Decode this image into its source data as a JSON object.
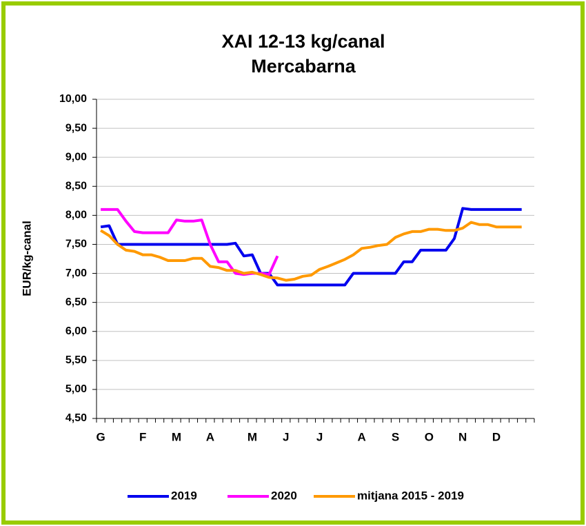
{
  "chart_data": {
    "type": "line",
    "title": "XAI   12-13 kg/canal",
    "subtitle": "Mercabarna",
    "y_label": "EUR/kg-canal",
    "categories": [
      "G",
      null,
      null,
      null,
      null,
      "F",
      null,
      null,
      null,
      "M",
      null,
      null,
      null,
      "A",
      null,
      null,
      null,
      null,
      "M",
      null,
      null,
      null,
      "J",
      null,
      null,
      null,
      "J",
      null,
      null,
      null,
      null,
      "A",
      null,
      null,
      null,
      "S",
      null,
      null,
      null,
      "O",
      null,
      null,
      null,
      "N",
      null,
      null,
      null,
      "D",
      null,
      null,
      null,
      null
    ],
    "series": [
      {
        "name": "2019",
        "color": "#0000ee",
        "values": [
          7.8,
          7.82,
          7.5,
          7.5,
          7.5,
          7.5,
          7.5,
          7.5,
          7.5,
          7.5,
          7.5,
          7.5,
          7.5,
          7.5,
          7.5,
          7.5,
          7.52,
          7.3,
          7.32,
          7.0,
          7.0,
          6.8,
          6.8,
          6.8,
          6.8,
          6.8,
          6.8,
          6.8,
          6.8,
          6.8,
          7.0,
          7.0,
          7.0,
          7.0,
          7.0,
          7.0,
          7.2,
          7.2,
          7.4,
          7.4,
          7.4,
          7.4,
          7.6,
          8.12,
          8.1,
          8.1,
          8.1,
          8.1,
          8.1,
          8.1,
          8.1,
          null
        ]
      },
      {
        "name": "2020",
        "color": "#ff00ff",
        "values": [
          8.1,
          8.1,
          8.1,
          7.9,
          7.72,
          7.7,
          7.7,
          7.7,
          7.7,
          7.92,
          7.9,
          7.9,
          7.92,
          7.5,
          7.2,
          7.2,
          7.0,
          6.98,
          7.0,
          7.0,
          6.98,
          7.3,
          null,
          null,
          null,
          null,
          null,
          null,
          null,
          null,
          null,
          null,
          null,
          null,
          null,
          null,
          null,
          null,
          null,
          null,
          null,
          null,
          null,
          null,
          null,
          null,
          null,
          null,
          null,
          null,
          null,
          null
        ]
      },
      {
        "name": "mitjana 2015 - 2019",
        "color": "#ff9900",
        "values": [
          7.74,
          7.65,
          7.5,
          7.4,
          7.38,
          7.32,
          7.32,
          7.28,
          7.22,
          7.22,
          7.22,
          7.26,
          7.26,
          7.12,
          7.1,
          7.05,
          7.05,
          7.0,
          7.02,
          6.98,
          6.93,
          6.92,
          6.88,
          6.9,
          6.95,
          6.97,
          7.07,
          7.12,
          7.18,
          7.24,
          7.32,
          7.43,
          7.45,
          7.48,
          7.5,
          7.62,
          7.68,
          7.72,
          7.72,
          7.76,
          7.76,
          7.74,
          7.74,
          7.78,
          7.88,
          7.84,
          7.84,
          7.8,
          7.8,
          7.8,
          7.8,
          null
        ]
      }
    ],
    "ylim": [
      4.5,
      10
    ],
    "yticks": [
      {
        "value": 4.5,
        "label": "4,50"
      },
      {
        "value": 5,
        "label": "5,00"
      },
      {
        "value": 5.5,
        "label": "5,50"
      },
      {
        "value": 6,
        "label": "6,00"
      },
      {
        "value": 6.5,
        "label": "6,50"
      },
      {
        "value": 7,
        "label": "7,00"
      },
      {
        "value": 7.5,
        "label": "7,50"
      },
      {
        "value": 8,
        "label": "8,00"
      },
      {
        "value": 8.5,
        "label": "8,50"
      },
      {
        "value": 9,
        "label": "9,00"
      },
      {
        "value": 9.5,
        "label": "9,50"
      },
      {
        "value": 10,
        "label": "10,00"
      }
    ],
    "grid": true,
    "legend": "bottom"
  }
}
